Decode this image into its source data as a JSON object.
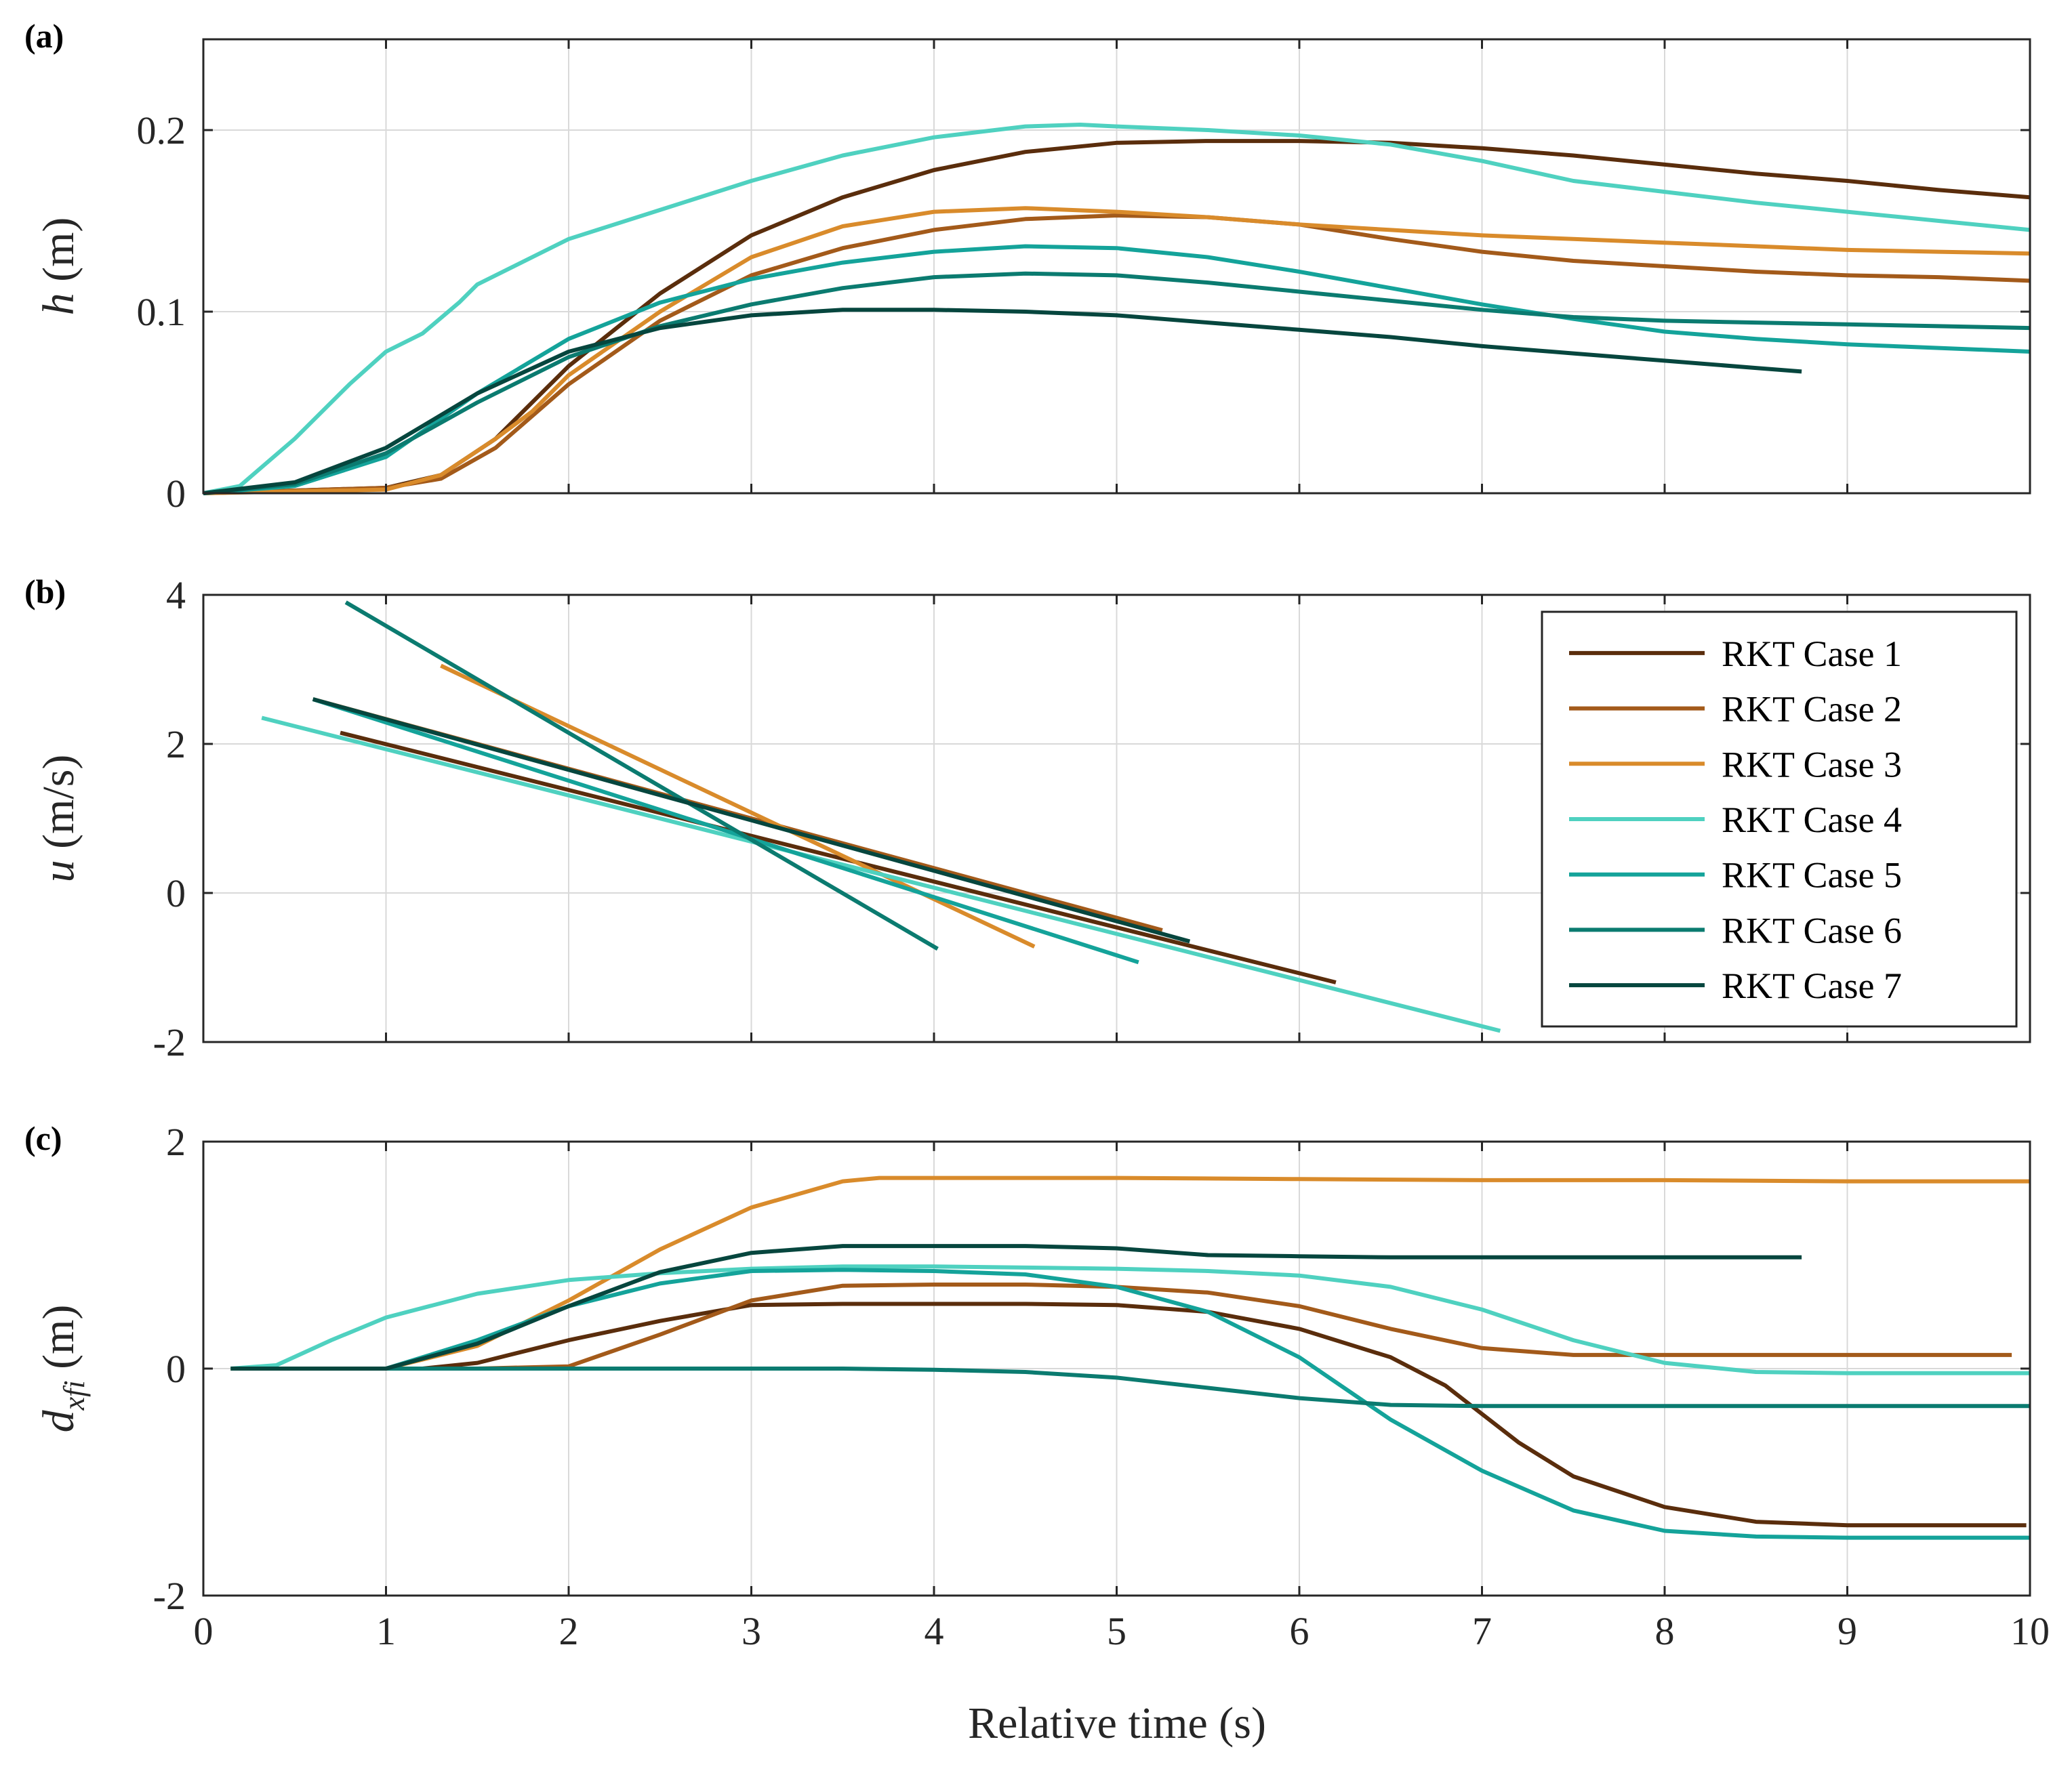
{
  "chart_data": {
    "type": "line",
    "xlabel": "Relative time (s)",
    "xlim": [
      0,
      10
    ],
    "xticks": [
      "0",
      "1",
      "2",
      "3",
      "4",
      "5",
      "6",
      "7",
      "8",
      "9",
      "10"
    ],
    "grid": true,
    "legend": {
      "location": "panel-b top-right",
      "entries": [
        {
          "name": "RKT Case 1",
          "color": "#5a2d0c"
        },
        {
          "name": "RKT Case 2",
          "color": "#a35a1a"
        },
        {
          "name": "RKT Case 3",
          "color": "#d98b2b"
        },
        {
          "name": "RKT Case 4",
          "color": "#4fd1c0"
        },
        {
          "name": "RKT Case 5",
          "color": "#14a39a"
        },
        {
          "name": "RKT Case 6",
          "color": "#0b7b70"
        },
        {
          "name": "RKT Case 7",
          "color": "#06463e"
        }
      ]
    },
    "panels": [
      {
        "label": "(a)",
        "ylabel_var": "h",
        "ylabel_unit": " (m)",
        "ylim": [
          0,
          0.25
        ],
        "yticks": [
          {
            "value": 0,
            "label": "0"
          },
          {
            "value": 0.1,
            "label": "0.1"
          },
          {
            "value": 0.2,
            "label": "0.2"
          }
        ],
        "series": [
          {
            "name": "RKT Case 1",
            "x": [
              0,
              1,
              1.3,
              1.6,
              2,
              2.5,
              3,
              3.5,
              4,
              4.5,
              5,
              5.5,
              6,
              6.5,
              7,
              7.5,
              8,
              8.5,
              9,
              9.5,
              10
            ],
            "y": [
              0,
              0.003,
              0.01,
              0.03,
              0.07,
              0.11,
              0.142,
              0.163,
              0.178,
              0.188,
              0.193,
              0.194,
              0.194,
              0.193,
              0.19,
              0.186,
              0.181,
              0.176,
              0.172,
              0.167,
              0.163
            ]
          },
          {
            "name": "RKT Case 2",
            "x": [
              0,
              1,
              1.3,
              1.6,
              2,
              2.5,
              3,
              3.5,
              4,
              4.5,
              5,
              5.5,
              6,
              6.5,
              7,
              7.5,
              8,
              8.5,
              9,
              9.5,
              10
            ],
            "y": [
              0,
              0.003,
              0.008,
              0.025,
              0.06,
              0.095,
              0.12,
              0.135,
              0.145,
              0.151,
              0.153,
              0.152,
              0.148,
              0.14,
              0.133,
              0.128,
              0.125,
              0.122,
              0.12,
              0.119,
              0.117
            ]
          },
          {
            "name": "RKT Case 3",
            "x": [
              0,
              1,
              1.3,
              1.6,
              1.8,
              2,
              2.5,
              3,
              3.5,
              4,
              4.5,
              5,
              5.5,
              6,
              6.5,
              7,
              7.5,
              8,
              8.5,
              9,
              9.5,
              10
            ],
            "y": [
              0,
              0.002,
              0.01,
              0.03,
              0.045,
              0.065,
              0.1,
              0.13,
              0.147,
              0.155,
              0.157,
              0.155,
              0.152,
              0.148,
              0.145,
              0.142,
              0.14,
              0.138,
              0.136,
              0.134,
              0.133,
              0.132
            ]
          },
          {
            "name": "RKT Case 4",
            "x": [
              0,
              0.2,
              0.5,
              0.8,
              1,
              1.2,
              1.4,
              1.5,
              2,
              2.5,
              3,
              3.5,
              4,
              4.5,
              4.8,
              5,
              5.5,
              6,
              6.5,
              7,
              7.5,
              8,
              8.5,
              9,
              9.5,
              10
            ],
            "y": [
              0,
              0.004,
              0.03,
              0.06,
              0.078,
              0.088,
              0.105,
              0.115,
              0.14,
              0.156,
              0.172,
              0.186,
              0.196,
              0.202,
              0.203,
              0.202,
              0.2,
              0.197,
              0.192,
              0.183,
              0.172,
              0.166,
              0.16,
              0.155,
              0.15,
              0.145
            ]
          },
          {
            "name": "RKT Case 5",
            "x": [
              0,
              0.5,
              1,
              1.5,
              2,
              2.5,
              3,
              3.5,
              4,
              4.5,
              5,
              5.5,
              6,
              6.5,
              7,
              7.5,
              8,
              8.5,
              9,
              9.5,
              10
            ],
            "y": [
              0,
              0.004,
              0.02,
              0.055,
              0.085,
              0.105,
              0.118,
              0.127,
              0.133,
              0.136,
              0.135,
              0.13,
              0.122,
              0.113,
              0.104,
              0.096,
              0.089,
              0.085,
              0.082,
              0.08,
              0.078
            ]
          },
          {
            "name": "RKT Case 6",
            "x": [
              0,
              0.5,
              1,
              1.5,
              2,
              2.5,
              3,
              3.5,
              4,
              4.5,
              5,
              5.5,
              6,
              6.5,
              7,
              7.5,
              8,
              8.5,
              9,
              9.5,
              10
            ],
            "y": [
              0,
              0.005,
              0.022,
              0.05,
              0.075,
              0.092,
              0.104,
              0.113,
              0.119,
              0.121,
              0.12,
              0.116,
              0.111,
              0.106,
              0.101,
              0.097,
              0.095,
              0.094,
              0.093,
              0.092,
              0.091
            ]
          },
          {
            "name": "RKT Case 7",
            "x": [
              0,
              0.5,
              1,
              1.5,
              2,
              2.5,
              3,
              3.5,
              4,
              4.5,
              5,
              5.5,
              6,
              6.5,
              7,
              7.5,
              8,
              8.5,
              8.75
            ],
            "y": [
              0,
              0.006,
              0.025,
              0.055,
              0.078,
              0.091,
              0.098,
              0.101,
              0.101,
              0.1,
              0.098,
              0.094,
              0.09,
              0.086,
              0.081,
              0.077,
              0.073,
              0.069,
              0.067
            ]
          }
        ]
      },
      {
        "label": "(b)",
        "ylabel_var": "u",
        "ylabel_unit": " (m/s)",
        "ylim": [
          -2,
          4
        ],
        "yticks": [
          {
            "value": -2,
            "label": "-2"
          },
          {
            "value": 0,
            "label": "0"
          },
          {
            "value": 2,
            "label": "2"
          },
          {
            "value": 4,
            "label": "4"
          }
        ],
        "series": [
          {
            "name": "RKT Case 1",
            "x": [
              0.75,
              6.2
            ],
            "y": [
              2.15,
              -1.2
            ]
          },
          {
            "name": "RKT Case 2",
            "x": [
              0.6,
              5.25
            ],
            "y": [
              2.6,
              -0.5
            ]
          },
          {
            "name": "RKT Case 3",
            "x": [
              1.3,
              4.55
            ],
            "y": [
              3.05,
              -0.72
            ]
          },
          {
            "name": "RKT Case 4",
            "x": [
              0.32,
              7.1
            ],
            "y": [
              2.35,
              -1.85
            ]
          },
          {
            "name": "RKT Case 5",
            "x": [
              0.6,
              5.12
            ],
            "y": [
              2.6,
              -0.93
            ]
          },
          {
            "name": "RKT Case 6",
            "x": [
              0.78,
              4.02
            ],
            "y": [
              3.9,
              -0.75
            ]
          },
          {
            "name": "RKT Case 7",
            "x": [
              0.6,
              5.4
            ],
            "y": [
              2.6,
              -0.65
            ]
          }
        ]
      },
      {
        "label": "(c)",
        "ylabel_var": "d",
        "ylabel_sub": "xfi",
        "ylabel_unit": " (m)",
        "ylim": [
          -2,
          2
        ],
        "yticks": [
          {
            "value": -2,
            "label": "-2"
          },
          {
            "value": 0,
            "label": "0"
          },
          {
            "value": 2,
            "label": "2"
          }
        ],
        "series": [
          {
            "name": "RKT Case 1",
            "x": [
              0.15,
              1.2,
              1.5,
              2,
              2.5,
              3,
              3.5,
              4,
              4.5,
              5,
              5.5,
              6,
              6.5,
              6.8,
              7,
              7.2,
              7.5,
              8,
              8.5,
              9,
              9.5,
              9.98
            ],
            "y": [
              0,
              0,
              0.05,
              0.25,
              0.42,
              0.56,
              0.57,
              0.57,
              0.57,
              0.56,
              0.5,
              0.35,
              0.1,
              -0.15,
              -0.4,
              -0.65,
              -0.95,
              -1.22,
              -1.35,
              -1.38,
              -1.38,
              -1.38
            ]
          },
          {
            "name": "RKT Case 2",
            "x": [
              0.15,
              1.5,
              2,
              2.5,
              3,
              3.5,
              4,
              4.5,
              5,
              5.5,
              6,
              6.5,
              7,
              7.5,
              8,
              8.5,
              9,
              9.5,
              9.9
            ],
            "y": [
              0,
              0,
              0.02,
              0.3,
              0.6,
              0.73,
              0.74,
              0.74,
              0.72,
              0.67,
              0.55,
              0.35,
              0.18,
              0.12,
              0.12,
              0.12,
              0.12,
              0.12,
              0.12
            ]
          },
          {
            "name": "RKT Case 3",
            "x": [
              0.15,
              1,
              1.5,
              2,
              2.5,
              3,
              3.5,
              3.7,
              4,
              5,
              6,
              7,
              8,
              9,
              10
            ],
            "y": [
              0,
              0,
              0.2,
              0.6,
              1.05,
              1.42,
              1.65,
              1.68,
              1.68,
              1.68,
              1.67,
              1.66,
              1.66,
              1.65,
              1.65
            ]
          },
          {
            "name": "RKT Case 4",
            "x": [
              0.15,
              0.4,
              0.7,
              1,
              1.5,
              2,
              2.5,
              3,
              3.5,
              4,
              4.5,
              5,
              5.5,
              6,
              6.5,
              7,
              7.5,
              8,
              8.5,
              9,
              9.5,
              10
            ],
            "y": [
              0,
              0.03,
              0.25,
              0.45,
              0.66,
              0.78,
              0.84,
              0.88,
              0.9,
              0.9,
              0.89,
              0.88,
              0.86,
              0.82,
              0.72,
              0.52,
              0.25,
              0.05,
              -0.03,
              -0.04,
              -0.04,
              -0.04
            ]
          },
          {
            "name": "RKT Case 5",
            "x": [
              0.15,
              1,
              1.5,
              2,
              2.5,
              3,
              3.5,
              4,
              4.5,
              5,
              5.5,
              6,
              6.5,
              7,
              7.5,
              8,
              8.5,
              9,
              9.5,
              10
            ],
            "y": [
              0,
              0,
              0.25,
              0.55,
              0.75,
              0.86,
              0.87,
              0.86,
              0.83,
              0.72,
              0.5,
              0.1,
              -0.45,
              -0.9,
              -1.25,
              -1.43,
              -1.48,
              -1.49,
              -1.49,
              -1.49
            ]
          },
          {
            "name": "RKT Case 6",
            "x": [
              0.15,
              1,
              2,
              3,
              3.5,
              4,
              4.5,
              5,
              5.5,
              6,
              6.5,
              7,
              7.5,
              8,
              8.5,
              9,
              9.5,
              10
            ],
            "y": [
              0,
              0,
              0,
              0,
              0,
              -0.01,
              -0.03,
              -0.08,
              -0.17,
              -0.26,
              -0.32,
              -0.33,
              -0.33,
              -0.33,
              -0.33,
              -0.33,
              -0.33,
              -0.33
            ]
          },
          {
            "name": "RKT Case 7",
            "x": [
              0.15,
              1,
              1.5,
              2,
              2.5,
              3,
              3.5,
              4,
              4.5,
              5,
              5.5,
              6,
              6.5,
              7,
              7.5,
              8,
              8.5,
              8.75
            ],
            "y": [
              0,
              0,
              0.22,
              0.55,
              0.85,
              1.02,
              1.08,
              1.08,
              1.08,
              1.06,
              1.0,
              0.99,
              0.98,
              0.98,
              0.98,
              0.98,
              0.98,
              0.98
            ]
          }
        ]
      }
    ]
  }
}
